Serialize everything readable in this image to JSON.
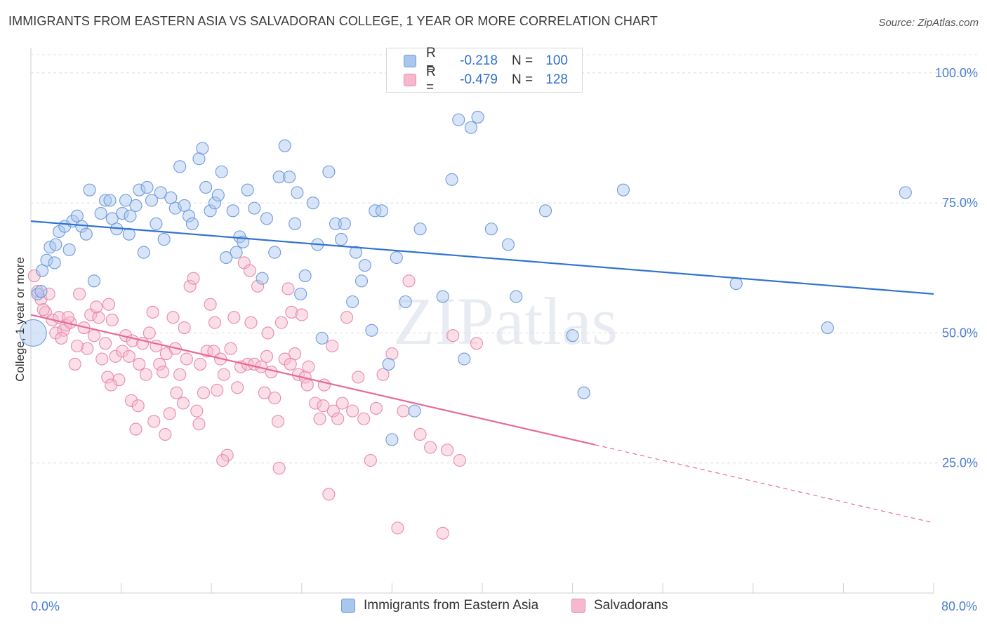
{
  "title": "IMMIGRANTS FROM EASTERN ASIA VS SALVADORAN COLLEGE, 1 YEAR OR MORE CORRELATION CHART",
  "source": "Source: ZipAtlas.com",
  "watermark": "ZIPatlas",
  "colors": {
    "blue_fill": "#a9c6ef",
    "blue_stroke": "#6f9bdc",
    "blue_line": "#2f72d0",
    "pink_fill": "#f6b8cb",
    "pink_stroke": "#e98aa8",
    "pink_line": "#e8699a",
    "tick_text": "#4a7fd1"
  },
  "legend": {
    "rows": [
      {
        "r_label": "R =",
        "r_value": "-0.218",
        "n_label": "N =",
        "n_value": "100"
      },
      {
        "r_label": "R =",
        "r_value": "-0.479",
        "n_label": "N =",
        "n_value": "128"
      }
    ]
  },
  "bottom_legend": [
    "Immigrants from Eastern Asia",
    "Salvadorans"
  ],
  "chart_data": {
    "type": "scatter",
    "xlabel": "",
    "ylabel": "College, 1 year or more",
    "xlim": [
      0,
      80
    ],
    "ylim": [
      0,
      105
    ],
    "x_tick_labels": [
      "0.0%",
      "80.0%"
    ],
    "y_ticks": [
      25,
      50,
      75,
      100
    ],
    "y_tick_labels": [
      "25.0%",
      "50.0%",
      "75.0%",
      "100.0%"
    ],
    "grid": "horizontal dashed",
    "series": [
      {
        "name": "Immigrants from Eastern Asia",
        "trend": {
          "x0": 0,
          "y0": 71.5,
          "x1": 80,
          "y1": 57.5
        },
        "points": [
          [
            0.2,
            50.0
          ],
          [
            0.6,
            57.5
          ],
          [
            1.0,
            62.0
          ],
          [
            1.4,
            64.0
          ],
          [
            1.7,
            66.5
          ],
          [
            2.2,
            67.0
          ],
          [
            2.5,
            69.5
          ],
          [
            3.0,
            70.5
          ],
          [
            3.4,
            66.0
          ],
          [
            3.7,
            71.5
          ],
          [
            4.1,
            72.5
          ],
          [
            4.5,
            70.5
          ],
          [
            4.9,
            69.0
          ],
          [
            5.2,
            77.5
          ],
          [
            5.6,
            60.0
          ],
          [
            6.2,
            73.0
          ],
          [
            6.6,
            75.5
          ],
          [
            7.0,
            75.5
          ],
          [
            7.2,
            72.0
          ],
          [
            7.6,
            70.0
          ],
          [
            8.1,
            73.0
          ],
          [
            8.4,
            75.5
          ],
          [
            8.8,
            72.5
          ],
          [
            9.3,
            74.5
          ],
          [
            9.6,
            77.5
          ],
          [
            10.0,
            65.5
          ],
          [
            10.3,
            78.0
          ],
          [
            10.7,
            75.5
          ],
          [
            11.1,
            71.0
          ],
          [
            11.5,
            77.0
          ],
          [
            11.8,
            68.0
          ],
          [
            12.4,
            76.0
          ],
          [
            12.8,
            74.0
          ],
          [
            13.2,
            82.0
          ],
          [
            13.6,
            74.5
          ],
          [
            14.0,
            72.5
          ],
          [
            14.3,
            71.0
          ],
          [
            14.9,
            83.5
          ],
          [
            15.2,
            85.5
          ],
          [
            15.5,
            78.0
          ],
          [
            15.9,
            73.5
          ],
          [
            16.3,
            75.0
          ],
          [
            16.6,
            76.5
          ],
          [
            16.9,
            81.0
          ],
          [
            17.3,
            64.5
          ],
          [
            17.9,
            73.5
          ],
          [
            18.5,
            68.5
          ],
          [
            18.8,
            67.5
          ],
          [
            19.2,
            77.5
          ],
          [
            19.8,
            74.0
          ],
          [
            20.5,
            60.5
          ],
          [
            20.9,
            72.0
          ],
          [
            21.6,
            65.5
          ],
          [
            22.0,
            80.0
          ],
          [
            22.5,
            86.0
          ],
          [
            22.9,
            80.0
          ],
          [
            23.4,
            71.0
          ],
          [
            23.6,
            77.0
          ],
          [
            23.9,
            57.5
          ],
          [
            24.3,
            61.0
          ],
          [
            25.0,
            75.0
          ],
          [
            25.4,
            67.0
          ],
          [
            25.8,
            49.0
          ],
          [
            26.4,
            81.0
          ],
          [
            27.0,
            71.0
          ],
          [
            27.5,
            68.0
          ],
          [
            27.8,
            71.0
          ],
          [
            28.5,
            56.0
          ],
          [
            28.8,
            65.5
          ],
          [
            29.3,
            60.0
          ],
          [
            29.6,
            63.0
          ],
          [
            30.2,
            50.5
          ],
          [
            30.5,
            73.5
          ],
          [
            31.1,
            73.5
          ],
          [
            31.7,
            44.0
          ],
          [
            32.0,
            29.5
          ],
          [
            32.4,
            64.5
          ],
          [
            33.2,
            56.0
          ],
          [
            34.0,
            35.0
          ],
          [
            34.5,
            70.0
          ],
          [
            36.5,
            57.0
          ],
          [
            37.3,
            79.5
          ],
          [
            37.9,
            91.0
          ],
          [
            38.4,
            45.0
          ],
          [
            39.0,
            89.5
          ],
          [
            39.6,
            91.5
          ],
          [
            40.8,
            70.0
          ],
          [
            42.3,
            67.0
          ],
          [
            43.0,
            57.0
          ],
          [
            45.6,
            73.5
          ],
          [
            48.0,
            49.5
          ],
          [
            49.0,
            38.5
          ],
          [
            52.5,
            77.5
          ],
          [
            62.5,
            59.5
          ],
          [
            70.6,
            51.0
          ],
          [
            77.5,
            77.0
          ],
          [
            0.9,
            58.0
          ],
          [
            2.1,
            63.5
          ],
          [
            8.7,
            69.0
          ],
          [
            18.2,
            65.5
          ]
        ]
      },
      {
        "name": "Salvadorans",
        "trend": {
          "x0": 0,
          "y0": 53.5,
          "x1": 50,
          "y1": 28.5,
          "dash_x1": 80,
          "dash_y1": 13.5
        },
        "points": [
          [
            0.3,
            61.0
          ],
          [
            0.6,
            58.0
          ],
          [
            0.9,
            56.5
          ],
          [
            1.3,
            54.0
          ],
          [
            1.6,
            57.5
          ],
          [
            1.9,
            52.5
          ],
          [
            2.2,
            50.0
          ],
          [
            2.5,
            53.0
          ],
          [
            2.9,
            50.5
          ],
          [
            3.1,
            51.5
          ],
          [
            3.5,
            52.0
          ],
          [
            3.9,
            44.0
          ],
          [
            4.3,
            57.5
          ],
          [
            4.7,
            51.0
          ],
          [
            5.0,
            47.0
          ],
          [
            5.3,
            53.5
          ],
          [
            5.6,
            49.5
          ],
          [
            6.0,
            53.0
          ],
          [
            6.3,
            45.0
          ],
          [
            6.6,
            48.0
          ],
          [
            6.9,
            55.5
          ],
          [
            7.2,
            52.5
          ],
          [
            7.5,
            45.5
          ],
          [
            7.8,
            41.0
          ],
          [
            8.1,
            46.5
          ],
          [
            8.4,
            49.5
          ],
          [
            8.7,
            45.5
          ],
          [
            9.0,
            48.5
          ],
          [
            9.3,
            31.5
          ],
          [
            9.6,
            44.0
          ],
          [
            9.9,
            48.0
          ],
          [
            10.2,
            42.0
          ],
          [
            10.5,
            50.0
          ],
          [
            10.8,
            54.0
          ],
          [
            11.1,
            47.5
          ],
          [
            11.4,
            44.0
          ],
          [
            11.7,
            42.5
          ],
          [
            12.0,
            46.0
          ],
          [
            12.3,
            34.5
          ],
          [
            12.6,
            53.0
          ],
          [
            12.9,
            38.5
          ],
          [
            13.2,
            42.0
          ],
          [
            13.5,
            36.5
          ],
          [
            13.8,
            45.0
          ],
          [
            14.1,
            59.0
          ],
          [
            14.4,
            60.5
          ],
          [
            14.7,
            35.0
          ],
          [
            15.0,
            44.0
          ],
          [
            15.3,
            38.5
          ],
          [
            15.6,
            46.5
          ],
          [
            15.9,
            55.5
          ],
          [
            16.2,
            46.5
          ],
          [
            16.5,
            39.0
          ],
          [
            16.8,
            45.0
          ],
          [
            17.1,
            42.0
          ],
          [
            17.4,
            26.5
          ],
          [
            17.7,
            47.0
          ],
          [
            18.0,
            53.0
          ],
          [
            18.3,
            39.5
          ],
          [
            18.6,
            43.5
          ],
          [
            18.9,
            63.5
          ],
          [
            19.2,
            44.0
          ],
          [
            19.5,
            52.0
          ],
          [
            19.8,
            44.0
          ],
          [
            20.1,
            59.0
          ],
          [
            20.4,
            43.5
          ],
          [
            20.7,
            38.5
          ],
          [
            21.0,
            50.0
          ],
          [
            21.3,
            42.5
          ],
          [
            21.6,
            37.5
          ],
          [
            21.9,
            33.0
          ],
          [
            22.2,
            52.0
          ],
          [
            22.5,
            45.0
          ],
          [
            22.8,
            58.5
          ],
          [
            23.1,
            54.0
          ],
          [
            23.4,
            46.0
          ],
          [
            23.7,
            42.0
          ],
          [
            24.0,
            53.5
          ],
          [
            24.3,
            41.5
          ],
          [
            24.6,
            43.5
          ],
          [
            25.2,
            36.5
          ],
          [
            25.6,
            33.5
          ],
          [
            26.0,
            40.0
          ],
          [
            26.4,
            19.0
          ],
          [
            26.8,
            35.0
          ],
          [
            27.2,
            33.5
          ],
          [
            27.6,
            36.5
          ],
          [
            28.0,
            53.0
          ],
          [
            28.5,
            35.0
          ],
          [
            29.0,
            41.5
          ],
          [
            29.5,
            33.5
          ],
          [
            30.1,
            25.5
          ],
          [
            30.6,
            35.5
          ],
          [
            31.2,
            42.0
          ],
          [
            32.0,
            46.0
          ],
          [
            32.5,
            12.5
          ],
          [
            33.0,
            35.0
          ],
          [
            33.5,
            60.0
          ],
          [
            34.5,
            30.5
          ],
          [
            35.4,
            28.0
          ],
          [
            36.5,
            11.5
          ],
          [
            36.9,
            27.5
          ],
          [
            37.4,
            49.5
          ],
          [
            38.0,
            25.5
          ],
          [
            39.5,
            48.0
          ],
          [
            1.1,
            54.5
          ],
          [
            2.7,
            49.0
          ],
          [
            3.3,
            53.0
          ],
          [
            4.1,
            47.5
          ],
          [
            5.8,
            55.0
          ],
          [
            6.8,
            41.5
          ],
          [
            7.1,
            40.0
          ],
          [
            8.9,
            37.0
          ],
          [
            9.5,
            36.0
          ],
          [
            10.9,
            33.0
          ],
          [
            11.9,
            30.5
          ],
          [
            12.8,
            47.0
          ],
          [
            13.6,
            51.0
          ],
          [
            14.9,
            32.5
          ],
          [
            16.3,
            52.0
          ],
          [
            17.0,
            25.5
          ],
          [
            19.4,
            62.0
          ],
          [
            20.9,
            45.5
          ],
          [
            22.0,
            24.0
          ],
          [
            23.0,
            44.0
          ],
          [
            24.5,
            40.0
          ],
          [
            25.9,
            36.0
          ],
          [
            26.7,
            47.5
          ]
        ]
      }
    ]
  }
}
